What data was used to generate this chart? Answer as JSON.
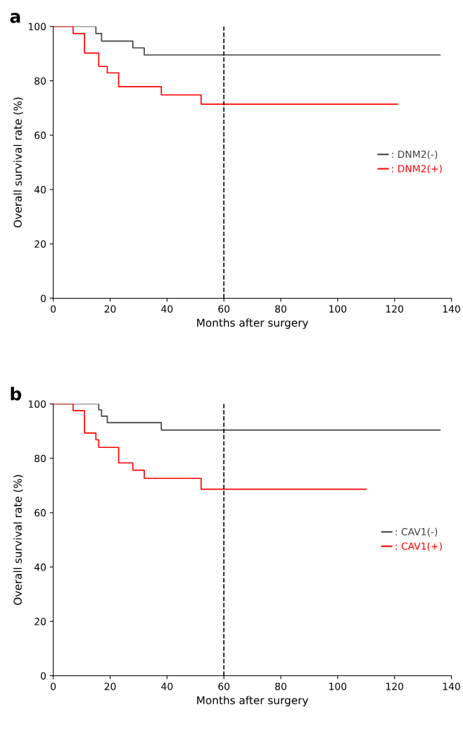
{
  "chart_data": [
    {
      "type": "step",
      "annotations": [
        "a"
      ],
      "xlabel": "Months after surgery",
      "ylabel": "Overall survival rate (%)",
      "xlim": [
        0,
        140
      ],
      "xticks": [
        0,
        20,
        40,
        60,
        80,
        100,
        120,
        140
      ],
      "ylim": [
        0,
        100
      ],
      "yticks": [
        0,
        20,
        40,
        60,
        80,
        100
      ],
      "grid": false,
      "legend": "right",
      "marker": "none",
      "line_style": "solid",
      "ref_lines": [
        {
          "axis": "x",
          "value": 60,
          "color": "#000000",
          "line_style": "dashed"
        }
      ],
      "series": [
        {
          "name": ": DNM2(-)",
          "color": "#404040",
          "x": [
            0,
            15,
            17,
            28,
            32,
            136
          ],
          "values": [
            100,
            97.4,
            94.6,
            92.1,
            89.5,
            89.5
          ]
        },
        {
          "name": ": DNM2(+)",
          "color": "#ff0000",
          "x": [
            0,
            7,
            11,
            16,
            19,
            23,
            38,
            52,
            121
          ],
          "values": [
            100,
            97.4,
            90.2,
            85.3,
            82.9,
            77.8,
            74.8,
            71.4,
            71.4
          ]
        }
      ]
    },
    {
      "type": "step",
      "annotations": [
        "b"
      ],
      "xlabel": "Months after surgery",
      "ylabel": "Overall survival rate (%)",
      "xlim": [
        0,
        140
      ],
      "xticks": [
        0,
        20,
        40,
        60,
        80,
        100,
        120,
        140
      ],
      "ylim": [
        0,
        100
      ],
      "yticks": [
        0,
        20,
        40,
        60,
        80,
        100
      ],
      "grid": false,
      "legend": "right",
      "marker": "none",
      "line_style": "solid",
      "ref_lines": [
        {
          "axis": "x",
          "value": 60,
          "color": "#000000",
          "line_style": "dashed"
        }
      ],
      "series": [
        {
          "name": ": CAV1(-)",
          "color": "#404040",
          "x": [
            0,
            16,
            17,
            19,
            38,
            136
          ],
          "values": [
            100,
            97.8,
            95.5,
            93.1,
            90.4,
            90.4
          ]
        },
        {
          "name": ": CAV1(+)",
          "color": "#ff0000",
          "x": [
            0,
            7,
            11,
            15,
            16,
            23,
            28,
            32,
            52,
            110
          ],
          "values": [
            100,
            97.5,
            89.3,
            86.8,
            84.0,
            78.3,
            75.6,
            72.6,
            68.6,
            68.6
          ]
        }
      ]
    }
  ]
}
